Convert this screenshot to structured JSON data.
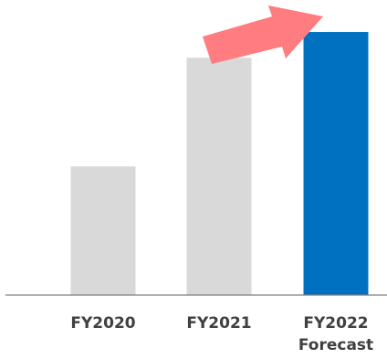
{
  "chart_data": {
    "type": "bar",
    "categories": [
      "FY2020",
      "FY2021",
      "FY2022"
    ],
    "category_sublabels": [
      "",
      "",
      "Forecast"
    ],
    "values": [
      45,
      83,
      92
    ],
    "ylim": [
      0,
      100
    ],
    "title": "",
    "xlabel": "",
    "ylabel": "",
    "grid": false,
    "legend": "none",
    "colors": {
      "actual": "#d9d9d9",
      "forecast": "#0070c0",
      "axis": "#7f7f7f",
      "arrow": "#ff7c80",
      "label": "#404040"
    },
    "annotations": [
      {
        "kind": "trend-arrow",
        "direction": "up-right",
        "icon": "trend-up-arrow-icon"
      }
    ]
  }
}
